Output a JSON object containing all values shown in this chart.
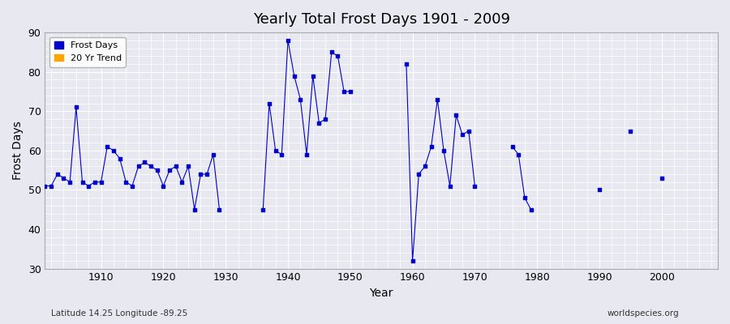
{
  "title": "Yearly Total Frost Days 1901 - 2009",
  "xlabel": "Year",
  "ylabel": "Frost Days",
  "subtitle_lat_lon": "Latitude 14.25 Longitude -89.25",
  "watermark": "worldspecies.org",
  "ylim": [
    30,
    90
  ],
  "xlim": [
    1901,
    2009
  ],
  "yticks": [
    30,
    40,
    50,
    60,
    70,
    80,
    90
  ],
  "line_color": "#0000cc",
  "marker_color": "#0000cc",
  "legend_frost_color": "#0000cc",
  "legend_trend_color": "#FFA500",
  "bg_color": "#e8e8f0",
  "grid_color": "#ffffff",
  "years": [
    1901,
    1902,
    1903,
    1904,
    1905,
    1906,
    1907,
    1908,
    1909,
    1910,
    1911,
    1912,
    1913,
    1914,
    1915,
    1916,
    1917,
    1918,
    1919,
    1920,
    1921,
    1922,
    1923,
    1924,
    1925,
    1926,
    1927,
    1928,
    1929,
    1930,
    1931,
    1932,
    1933,
    1934,
    1935,
    1936,
    1937,
    1938,
    1939,
    1940,
    1941,
    1942,
    1943,
    1944,
    1945,
    1946,
    1947,
    1948,
    1949,
    1950,
    1951,
    1952,
    1953,
    1954,
    1955,
    1956,
    1957,
    1958,
    1959,
    1960,
    1961,
    1962,
    1963,
    1964,
    1965,
    1966,
    1967,
    1968,
    1969,
    1970,
    1971,
    1972,
    1973,
    1974,
    1975,
    1976,
    1977,
    1978,
    1979,
    1980,
    1981,
    1982,
    1983,
    1984,
    1985,
    1986,
    1987,
    1988,
    1989,
    1990,
    1991,
    1992,
    1993,
    1994,
    1995,
    1996,
    1997,
    1998,
    1999,
    2000,
    2001,
    2002,
    2003,
    2004,
    2005,
    2006,
    2007,
    2008,
    2009
  ],
  "values": [
    51,
    51,
    54,
    53,
    52,
    71,
    52,
    51,
    52,
    52,
    61,
    60,
    58,
    52,
    51,
    56,
    57,
    56,
    55,
    51,
    55,
    56,
    52,
    56,
    45,
    54,
    54,
    59,
    45,
    null,
    null,
    null,
    null,
    null,
    null,
    45,
    72,
    60,
    59,
    88,
    79,
    73,
    59,
    79,
    67,
    68,
    85,
    84,
    75,
    75,
    null,
    null,
    null,
    null,
    null,
    null,
    null,
    null,
    82,
    32,
    54,
    56,
    61,
    73,
    60,
    51,
    69,
    64,
    65,
    51,
    null,
    null,
    null,
    null,
    null,
    61,
    59,
    48,
    45,
    null,
    null,
    null,
    null,
    null,
    null,
    null,
    null,
    null,
    null,
    50,
    null,
    null,
    null,
    null,
    65,
    null,
    null,
    null,
    null,
    53,
    null,
    null,
    null,
    null,
    null,
    null,
    null,
    null,
    null
  ]
}
